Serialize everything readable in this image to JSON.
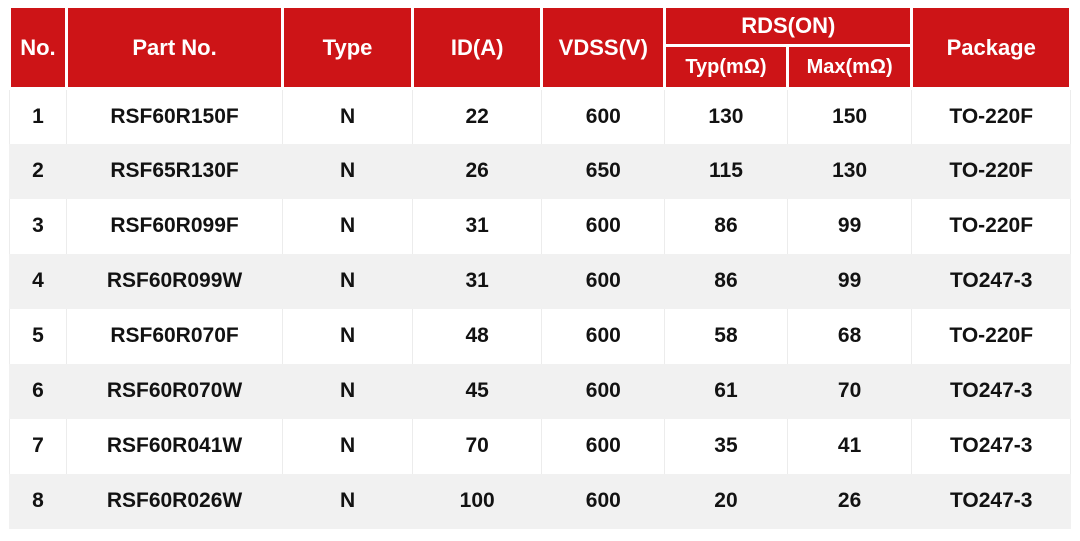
{
  "table": {
    "headers": {
      "no": "No.",
      "part_no": "Part No.",
      "type": "Type",
      "id_a": "ID(A)",
      "vdss_v": "VDSS(V)",
      "rds_on": "RDS(ON)",
      "rds_typ": "Typ(mΩ)",
      "rds_max": "Max(mΩ)",
      "package": "Package"
    },
    "columns": [
      "No.",
      "Part No.",
      "Type",
      "ID(A)",
      "VDSS(V)",
      "Typ(mΩ)",
      "Max(mΩ)",
      "Package"
    ],
    "rows": [
      [
        "1",
        "RSF60R150F",
        "N",
        "22",
        "600",
        "130",
        "150",
        "TO-220F"
      ],
      [
        "2",
        "RSF65R130F",
        "N",
        "26",
        "650",
        "115",
        "130",
        "TO-220F"
      ],
      [
        "3",
        "RSF60R099F",
        "N",
        "31",
        "600",
        "86",
        "99",
        "TO-220F"
      ],
      [
        "4",
        "RSF60R099W",
        "N",
        "31",
        "600",
        "86",
        "99",
        "TO247-3"
      ],
      [
        "5",
        "RSF60R070F",
        "N",
        "48",
        "600",
        "58",
        "68",
        "TO-220F"
      ],
      [
        "6",
        "RSF60R070W",
        "N",
        "45",
        "600",
        "61",
        "70",
        "TO247-3"
      ],
      [
        "7",
        "RSF60R041W",
        "N",
        "70",
        "600",
        "35",
        "41",
        "TO247-3"
      ],
      [
        "8",
        "RSF60R026W",
        "N",
        "100",
        "600",
        "20",
        "26",
        "TO247-3"
      ]
    ],
    "colors": {
      "header_bg": "#CD1417",
      "header_text": "#FFFFFF",
      "row_alt_bg": "#F1F1F1",
      "body_text": "#121212"
    }
  }
}
